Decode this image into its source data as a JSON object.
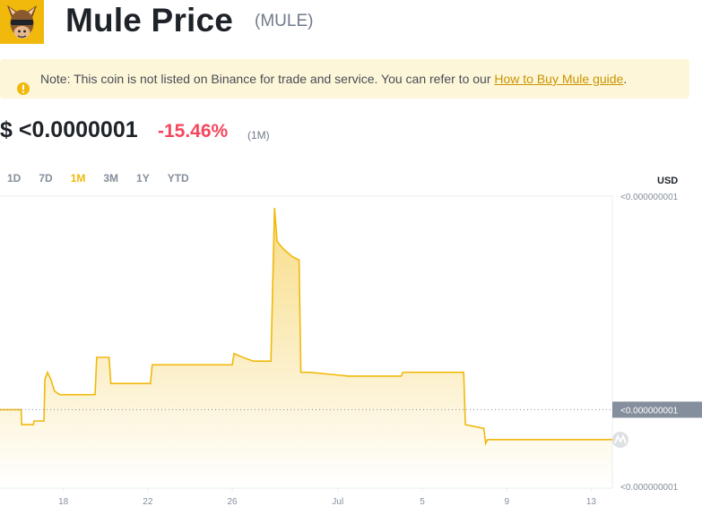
{
  "header": {
    "title": "Mule Price",
    "symbol": "(MULE)"
  },
  "notice": {
    "text": "Note: This coin is not listed on Binance for trade and service. You can refer to our ",
    "link_label": "How to Buy Mule guide",
    "suffix": "."
  },
  "price": {
    "value": "$ <0.0000001",
    "change": "-15.46%",
    "period": "(1M)"
  },
  "tabs": [
    {
      "label": "1D",
      "active": false
    },
    {
      "label": "7D",
      "active": false
    },
    {
      "label": "1M",
      "active": true
    },
    {
      "label": "3M",
      "active": false
    },
    {
      "label": "1Y",
      "active": false
    },
    {
      "label": "YTD",
      "active": false
    }
  ],
  "colors": {
    "accent": "#f0b90b",
    "negative": "#f6465d",
    "line": "#f0b90b"
  },
  "chart_data": {
    "type": "area",
    "currency": "USD",
    "y_tick_labels": [
      "<0.000000001",
      "<0.000000001",
      "<0.000000001"
    ],
    "current_price_label": "<0.000000001",
    "x_tick_labels": [
      "18",
      "22",
      "26",
      "Jul",
      "5",
      "9",
      "13"
    ],
    "series": [
      {
        "values": [
          [
            "Jun 15 00:00",
            0.46
          ],
          [
            "Jun 16 00:00",
            0.46
          ],
          [
            "Jun 16 00:40",
            0.42
          ],
          [
            "Jun 16 14:00",
            0.42
          ],
          [
            "Jun 16 14:40",
            0.43
          ],
          [
            "Jun 17 02:00",
            0.43
          ],
          [
            "Jun 17 03:00",
            0.54
          ],
          [
            "Jun 17 06:00",
            0.56
          ],
          [
            "Jun 17 10:00",
            0.54
          ],
          [
            "Jun 17 14:00",
            0.51
          ],
          [
            "Jun 17 20:00",
            0.5
          ],
          [
            "Jun 19 12:00",
            0.5
          ],
          [
            "Jun 19 14:00",
            0.6
          ],
          [
            "Jun 20 04:00",
            0.6
          ],
          [
            "Jun 20 06:00",
            0.53
          ],
          [
            "Jun 22 03:00",
            0.53
          ],
          [
            "Jun 22 05:00",
            0.58
          ],
          [
            "Jun 25 00:00",
            0.58
          ],
          [
            "Jun 26 00:00",
            0.58
          ],
          [
            "Jun 26 02:00",
            0.61
          ],
          [
            "Jun 26 12:00",
            0.6
          ],
          [
            "Jun 27 00:00",
            0.59
          ],
          [
            "Jun 27 20:00",
            0.59
          ],
          [
            "Jun 28 00:00",
            1.0
          ],
          [
            "Jun 28 03:00",
            0.91
          ],
          [
            "Jun 28 10:00",
            0.89
          ],
          [
            "Jun 28 20:00",
            0.87
          ],
          [
            "Jun 29 04:00",
            0.86
          ],
          [
            "Jun 29 06:00",
            0.56
          ],
          [
            "Jun 29 16:00",
            0.56
          ],
          [
            "Jul 1 12:00",
            0.55
          ],
          [
            "Jul 2 00:00",
            0.55
          ],
          [
            "Jul 4 00:00",
            0.55
          ],
          [
            "Jul 4 02:00",
            0.56
          ],
          [
            "Jul 6 23:00",
            0.56
          ],
          [
            "Jul 7 01:00",
            0.42
          ],
          [
            "Jul 7 22:00",
            0.41
          ],
          [
            "Jul 8 00:00",
            0.37
          ],
          [
            "Jul 8 02:00",
            0.38
          ],
          [
            "Jul 14 00:00",
            0.38
          ]
        ]
      }
    ]
  }
}
